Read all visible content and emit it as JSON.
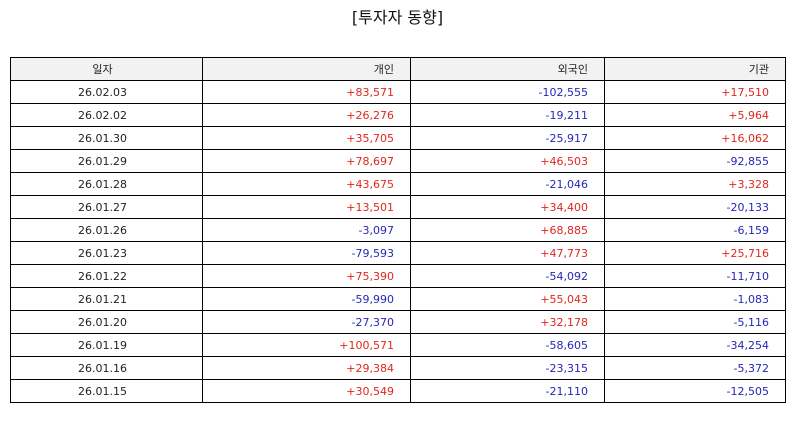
{
  "title": "[투자자 동향]",
  "table": {
    "headers": [
      "일자",
      "개인",
      "외국인",
      "기관"
    ],
    "rows": [
      [
        "26.02.03",
        "+83,571",
        "-102,555",
        "+17,510"
      ],
      [
        "26.02.02",
        "+26,276",
        "-19,211",
        "+5,964"
      ],
      [
        "26.01.30",
        "+35,705",
        "-25,917",
        "+16,062"
      ],
      [
        "26.01.29",
        "+78,697",
        "+46,503",
        "-92,855"
      ],
      [
        "26.01.28",
        "+43,675",
        "-21,046",
        "+3,328"
      ],
      [
        "26.01.27",
        "+13,501",
        "+34,400",
        "-20,133"
      ],
      [
        "26.01.26",
        "-3,097",
        "+68,885",
        "-6,159"
      ],
      [
        "26.01.23",
        "-79,593",
        "+47,773",
        "+25,716"
      ],
      [
        "26.01.22",
        "+75,390",
        "-54,092",
        "-11,710"
      ],
      [
        "26.01.21",
        "-59,990",
        "+55,043",
        "-1,083"
      ],
      [
        "26.01.20",
        "-27,370",
        "+32,178",
        "-5,116"
      ],
      [
        "26.01.19",
        "+100,571",
        "-58,605",
        "-34,254"
      ],
      [
        "26.01.16",
        "+29,384",
        "-23,315",
        "-5,372"
      ],
      [
        "26.01.15",
        "+30,549",
        "-21,110",
        "-12,505"
      ]
    ]
  },
  "colors": {
    "positive": "#e0261e",
    "negative": "#2626b8",
    "header_bg": "#f2f2f2",
    "border": "#000000"
  }
}
